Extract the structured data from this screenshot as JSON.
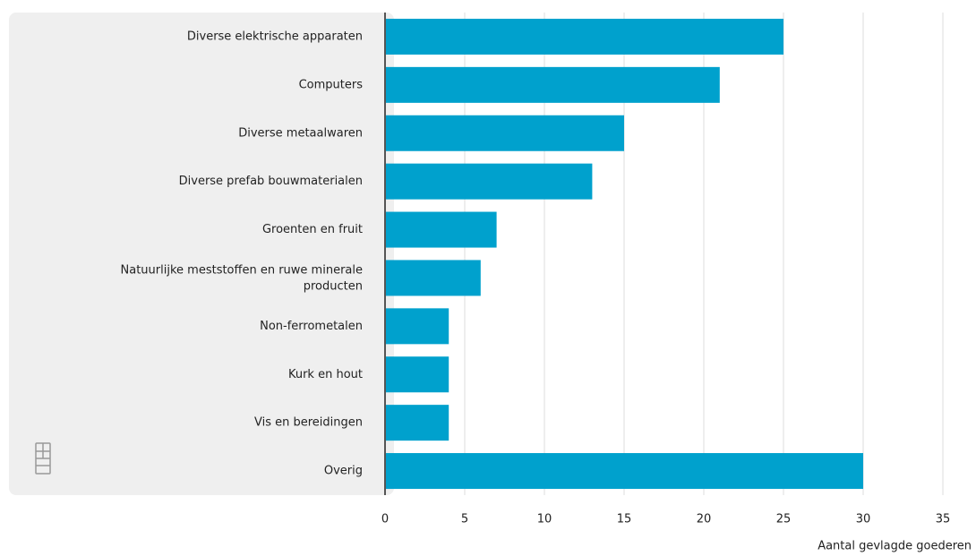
{
  "chart_data": {
    "type": "bar",
    "orientation": "horizontal",
    "categories": [
      "Diverse elektrische apparaten",
      "Computers",
      "Diverse metaalwaren",
      "Diverse prefab bouwmaterialen",
      "Groenten en fruit",
      "Natuurlijke meststoffen en ruwe minerale producten",
      "Non-ferrometalen",
      "Kurk en hout",
      "Vis en bereidingen",
      "Overig"
    ],
    "values": [
      25,
      21,
      15,
      13,
      7,
      6,
      4,
      4,
      4,
      30
    ],
    "color": "#00a1cd",
    "xlim": [
      0,
      35
    ],
    "xticks": [
      0,
      5,
      10,
      15,
      20,
      25,
      30,
      35
    ],
    "x_label": "Aantal gevlagde goederen",
    "grid": true
  }
}
